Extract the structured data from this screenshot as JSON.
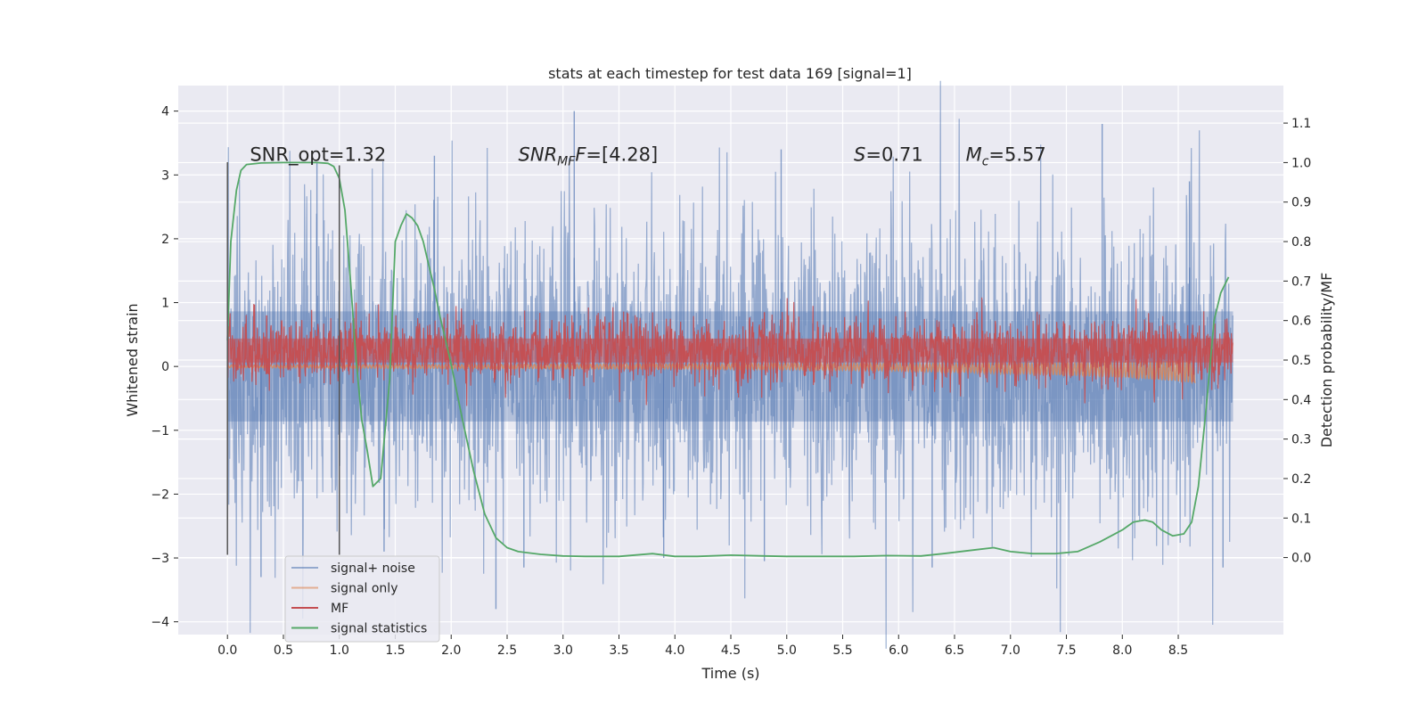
{
  "chart_data": {
    "type": "line",
    "title": "stats at each timestep for test data 169 [signal=1]",
    "xlabel": "Time (s)",
    "ylabel": "Whitened strain",
    "y2label": "Detection probability/MF",
    "xlim": [
      -0.44,
      9.44
    ],
    "ylim": [
      -4.2,
      4.4
    ],
    "y2lim": [
      -0.195,
      1.195
    ],
    "x_ticks": [
      0.0,
      0.5,
      1.0,
      1.5,
      2.0,
      2.5,
      3.0,
      3.5,
      4.0,
      4.5,
      5.0,
      5.5,
      6.0,
      6.5,
      7.0,
      7.5,
      8.0,
      8.5
    ],
    "x_tick_labels": [
      "0.0",
      "0.5",
      "1.0",
      "1.5",
      "2.0",
      "2.5",
      "3.0",
      "3.5",
      "4.0",
      "4.5",
      "5.0",
      "5.5",
      "6.0",
      "6.5",
      "7.0",
      "7.5",
      "8.0",
      "8.5"
    ],
    "y_ticks": [
      -4,
      -3,
      -2,
      -1,
      0,
      1,
      2,
      3,
      4
    ],
    "y_tick_labels": [
      "−4",
      "−3",
      "−2",
      "−1",
      "0",
      "1",
      "2",
      "3",
      "4"
    ],
    "y2_ticks": [
      0.0,
      0.1,
      0.2,
      0.3,
      0.4,
      0.5,
      0.6,
      0.7,
      0.8,
      0.9,
      1.0,
      1.1
    ],
    "y2_tick_labels": [
      "0.0",
      "0.1",
      "0.2",
      "0.3",
      "0.4",
      "0.5",
      "0.6",
      "0.7",
      "0.8",
      "0.9",
      "1.0",
      "1.1"
    ],
    "grid": true,
    "legend_position": "lower-left",
    "background_color": "#eaeaf2",
    "annotations": [
      {
        "id": "snr-opt",
        "text": "SNR_opt=1.32",
        "x": 0.2,
        "y": 3.22
      },
      {
        "id": "snr-mf",
        "text": "SNR_MF=[4.28]",
        "prefix": "SNR",
        "sub": "MF",
        "rest": "F=[4.28]",
        "x": 2.6,
        "y": 3.22
      },
      {
        "id": "s-value",
        "text": "S=0.71",
        "prefix": "S",
        "sub": "",
        "rest": "=0.71",
        "x": 5.6,
        "y": 3.22
      },
      {
        "id": "mc-value",
        "text": "M_c=5.57",
        "prefix": "M",
        "sub": "c",
        "rest": "=5.57",
        "x": 6.6,
        "y": 3.22
      }
    ],
    "vertical_markers": [
      {
        "x": 0.0,
        "y_range": [
          -2.95,
          3.2
        ]
      },
      {
        "x": 1.0,
        "y_range": [
          -2.95,
          3.15
        ]
      }
    ],
    "series": [
      {
        "name": "signal+ noise",
        "color": "#4c72b0",
        "axis": "left",
        "style": "noise-band",
        "x_range": [
          0.0,
          8.99
        ],
        "band_low": -1.15,
        "band_high": 1.15,
        "max_peaks": [
          {
            "x": 0.8,
            "y": 3.2
          },
          {
            "x": 1.85,
            "y": 3.3
          },
          {
            "x": 3.1,
            "y": 4.0
          },
          {
            "x": 4.95,
            "y": 3.4
          },
          {
            "x": 7.82,
            "y": 3.8
          },
          {
            "x": 8.6,
            "y": 2.9
          }
        ],
        "min_peaks": [
          {
            "x": 0.3,
            "y": -3.3
          },
          {
            "x": 1.4,
            "y": -2.9
          },
          {
            "x": 2.4,
            "y": -3.8
          },
          {
            "x": 2.65,
            "y": -3.15
          },
          {
            "x": 3.9,
            "y": -3.0
          },
          {
            "x": 4.8,
            "y": -3.05
          },
          {
            "x": 6.3,
            "y": -3.15
          },
          {
            "x": 8.9,
            "y": -3.15
          }
        ]
      },
      {
        "name": "signal only",
        "color": "#dd8452",
        "axis": "left",
        "style": "chirp",
        "x_range": [
          0.0,
          8.65
        ],
        "envelope": {
          "x": [
            0.0,
            2.0,
            4.0,
            6.0,
            7.0,
            8.0,
            8.5,
            8.65
          ],
          "amp": [
            0.02,
            0.03,
            0.04,
            0.06,
            0.08,
            0.12,
            0.16,
            0.18
          ]
        },
        "offset": {
          "x": [
            0.0,
            5.0,
            6.0,
            7.0,
            8.0,
            8.65
          ],
          "y": [
            0.0,
            0.0,
            -0.01,
            -0.03,
            -0.05,
            -0.08
          ]
        }
      },
      {
        "name": "MF",
        "color": "#c44e52",
        "axis": "left",
        "style": "noise-band",
        "x_range": [
          0.0,
          8.99
        ],
        "band_low": 0.0,
        "band_high": 0.5,
        "max_peaks": [
          {
            "x": 1.15,
            "y": 1.0
          },
          {
            "x": 6.7,
            "y": 0.85
          },
          {
            "x": 4.8,
            "y": 0.85
          },
          {
            "x": 0.35,
            "y": 0.8
          }
        ],
        "min_peaks": []
      },
      {
        "name": "signal statistics",
        "color": "#55a868",
        "axis": "right",
        "style": "line",
        "x": [
          0.0,
          0.03,
          0.08,
          0.12,
          0.17,
          0.3,
          0.5,
          0.7,
          0.8,
          0.9,
          0.95,
          1.0,
          1.05,
          1.1,
          1.15,
          1.2,
          1.25,
          1.3,
          1.37,
          1.45,
          1.5,
          1.55,
          1.6,
          1.65,
          1.7,
          1.75,
          1.8,
          1.85,
          1.9,
          1.95,
          2.0,
          2.05,
          2.1,
          2.2,
          2.3,
          2.4,
          2.5,
          2.6,
          2.8,
          3.0,
          3.2,
          3.5,
          3.8,
          4.0,
          4.2,
          4.5,
          4.8,
          5.0,
          5.3,
          5.6,
          5.9,
          6.2,
          6.4,
          6.7,
          6.85,
          7.0,
          7.2,
          7.4,
          7.6,
          7.8,
          8.0,
          8.1,
          8.2,
          8.27,
          8.35,
          8.45,
          8.55,
          8.62,
          8.68,
          8.75,
          8.82,
          8.88,
          8.95
        ],
        "y": [
          0.55,
          0.8,
          0.93,
          0.98,
          0.995,
          0.999,
          1.0,
          1.0,
          1.0,
          0.998,
          0.99,
          0.96,
          0.88,
          0.7,
          0.5,
          0.35,
          0.27,
          0.18,
          0.2,
          0.45,
          0.8,
          0.84,
          0.87,
          0.86,
          0.84,
          0.8,
          0.74,
          0.68,
          0.61,
          0.55,
          0.49,
          0.42,
          0.35,
          0.22,
          0.11,
          0.05,
          0.025,
          0.015,
          0.008,
          0.004,
          0.003,
          0.003,
          0.01,
          0.003,
          0.003,
          0.006,
          0.004,
          0.003,
          0.003,
          0.003,
          0.005,
          0.004,
          0.01,
          0.02,
          0.025,
          0.015,
          0.01,
          0.01,
          0.015,
          0.04,
          0.07,
          0.09,
          0.095,
          0.09,
          0.07,
          0.055,
          0.06,
          0.09,
          0.18,
          0.38,
          0.6,
          0.67,
          0.71
        ]
      }
    ]
  }
}
